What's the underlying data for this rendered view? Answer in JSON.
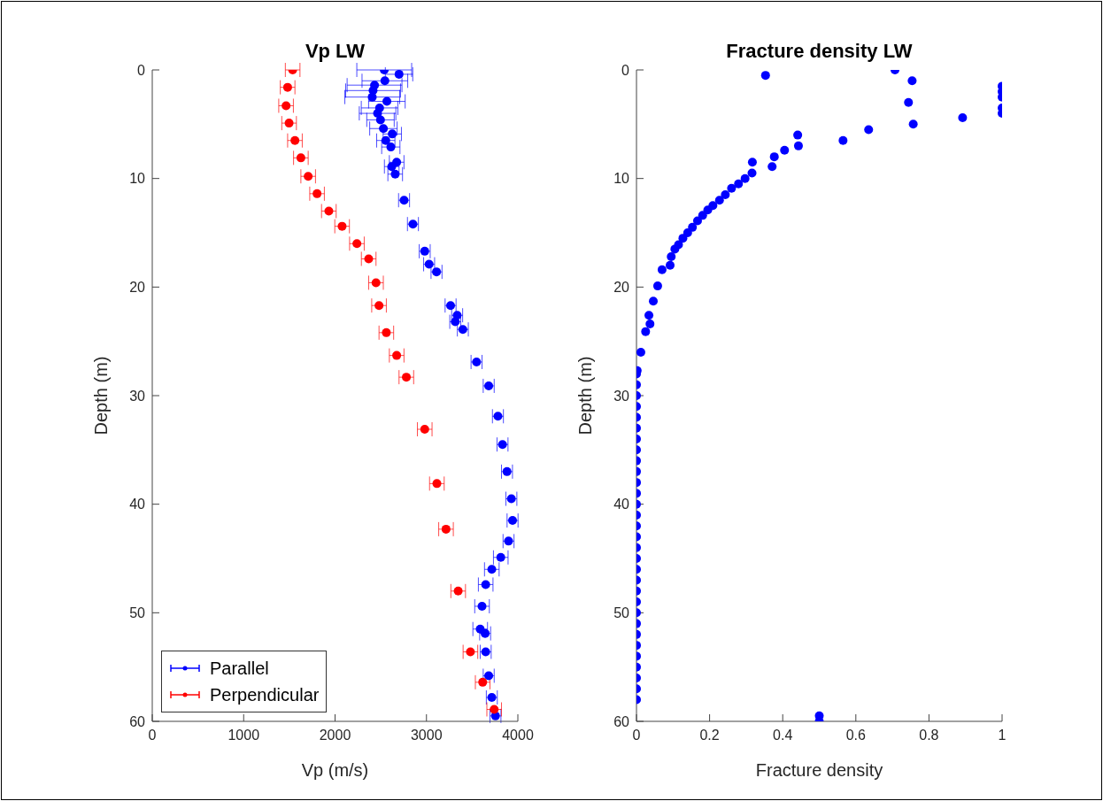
{
  "chart_data": [
    {
      "type": "scatter",
      "title": "Vp LW",
      "xlabel": "Vp (m/s)",
      "ylabel": "Depth (m)",
      "xlim": [
        0,
        4000
      ],
      "xticks": [
        0,
        1000,
        2000,
        3000,
        4000
      ],
      "ylim": [
        60,
        0
      ],
      "yticks": [
        0,
        10,
        20,
        30,
        40,
        50,
        60
      ],
      "legend": "bottom left",
      "marker": "circle",
      "grid": false,
      "series": [
        {
          "name": "Parallel",
          "color": "#0000ff",
          "x": [
            2538,
            2700,
            2545,
            2432,
            2416,
            2407,
            2567,
            2487,
            2465,
            2497,
            2529,
            2626,
            2555,
            2610,
            2674,
            2620,
            2658,
            2755,
            2852,
            2981,
            3029,
            3110,
            3264,
            3336,
            3315,
            3398,
            3548,
            3681,
            3782,
            3832,
            3881,
            3929,
            3942,
            3898,
            3813,
            3715,
            3648,
            3608,
            3588,
            3642,
            3648,
            3681,
            3715,
            3755
          ],
          "values": [
            0,
            0.4,
            1.0,
            1.4,
            1.9,
            2.5,
            2.9,
            3.5,
            4.0,
            4.6,
            5.4,
            5.9,
            6.5,
            7.1,
            8.5,
            8.9,
            9.6,
            12.0,
            14.2,
            16.7,
            17.9,
            18.6,
            21.7,
            22.6,
            23.2,
            23.9,
            26.9,
            29.1,
            31.9,
            34.5,
            37.0,
            39.5,
            41.5,
            43.4,
            44.9,
            46.0,
            47.4,
            49.4,
            51.5,
            51.9,
            53.6,
            55.8,
            57.8,
            59.5
          ],
          "xerrors": [
            300,
            150,
            250,
            300,
            300,
            300,
            200,
            200,
            200,
            150,
            150,
            100,
            100,
            100,
            80,
            80,
            80,
            60,
            60,
            60,
            60,
            60,
            60,
            60,
            60,
            60,
            60,
            60,
            60,
            60,
            60,
            60,
            60,
            60,
            80,
            80,
            80,
            80,
            80,
            60,
            60,
            60,
            60,
            60
          ]
        },
        {
          "name": "Perpendicular",
          "color": "#ff0000",
          "x": [
            1536,
            1481,
            1464,
            1497,
            1561,
            1626,
            1706,
            1803,
            1932,
            2077,
            2239,
            2368,
            2448,
            2481,
            2561,
            2674,
            2780,
            2981,
            3114,
            3214,
            3347,
            3481,
            3615,
            3741
          ],
          "values": [
            0,
            1.6,
            3.3,
            4.9,
            6.5,
            8.1,
            9.8,
            11.4,
            13.0,
            14.4,
            16.0,
            17.4,
            19.6,
            21.7,
            24.2,
            26.3,
            28.3,
            33.1,
            38.1,
            42.3,
            48.0,
            53.6,
            56.4,
            58.9
          ],
          "xerrors": [
            80,
            80,
            80,
            80,
            80,
            80,
            80,
            80,
            80,
            80,
            80,
            80,
            80,
            80,
            80,
            80,
            80,
            80,
            80,
            80,
            80,
            80,
            80,
            80
          ]
        }
      ]
    },
    {
      "type": "scatter",
      "title": "Fracture density LW",
      "xlabel": "Fracture density",
      "ylabel": "Depth (m)",
      "xlim": [
        0,
        1
      ],
      "xticks": [
        0,
        0.2,
        0.4,
        0.6,
        0.8,
        1
      ],
      "ylim": [
        60,
        0
      ],
      "yticks": [
        0,
        10,
        20,
        30,
        40,
        50,
        60
      ],
      "marker": "circle",
      "grid": false,
      "series": [
        {
          "color": "#0000ff",
          "x": [
            0.707,
            0.353,
            0.754,
            1,
            1,
            1,
            0.744,
            1,
            1,
            0.892,
            0.757,
            0.635,
            0.441,
            0.565,
            0.443,
            0.405,
            0.377,
            0.317,
            0.371,
            0.316,
            0.297,
            0.279,
            0.26,
            0.243,
            0.227,
            0.209,
            0.195,
            0.181,
            0.167,
            0.153,
            0.14,
            0.127,
            0.115,
            0.105,
            0.095,
            0.092,
            0.07,
            0.058,
            0.046,
            0.034,
            0.037,
            0.025,
            0.012,
            0.002,
            0,
            0,
            0,
            0,
            0,
            0,
            0,
            0,
            0,
            0,
            0,
            0,
            0,
            0,
            0,
            0,
            0,
            0,
            0,
            0,
            0,
            0,
            0,
            0,
            0,
            0,
            0,
            0,
            0,
            0,
            0,
            0.5,
            0.5
          ],
          "values": [
            0,
            0.5,
            1.0,
            1.5,
            2.0,
            2.5,
            3.0,
            3.5,
            4.0,
            4.4,
            5.0,
            5.5,
            6.0,
            6.5,
            7.0,
            7.4,
            8.0,
            8.5,
            8.9,
            9.5,
            10.0,
            10.5,
            10.9,
            11.5,
            12.0,
            12.5,
            12.9,
            13.4,
            13.9,
            14.5,
            15.0,
            15.5,
            16.1,
            16.5,
            17.2,
            18.0,
            18.4,
            19.9,
            21.3,
            22.6,
            23.4,
            24.1,
            26.0,
            27.7,
            28,
            29,
            30,
            31,
            32,
            33,
            34,
            35,
            36,
            37,
            38,
            39,
            40,
            41,
            42,
            43,
            44,
            45,
            46,
            47,
            48,
            49,
            50,
            51,
            52,
            53,
            54,
            55,
            56,
            57,
            58,
            59.5,
            60
          ]
        }
      ]
    }
  ]
}
